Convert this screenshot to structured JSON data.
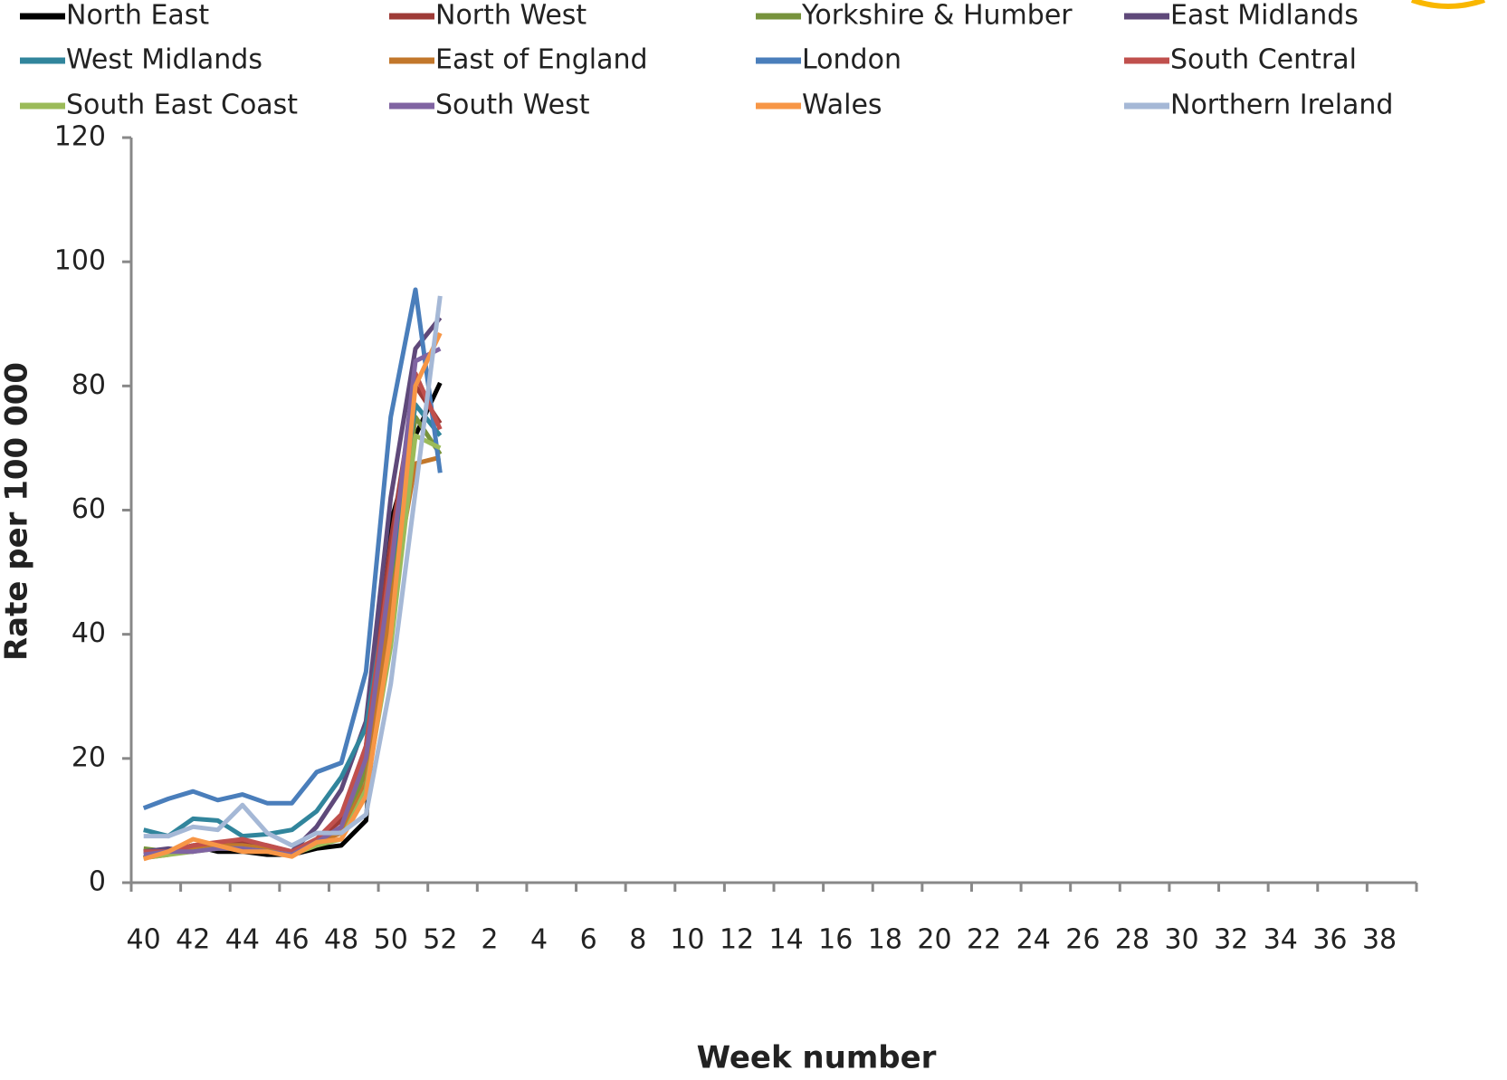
{
  "chart_data": {
    "type": "line",
    "x_label": "Week number",
    "y_label": "Rate per 100 000",
    "categories": [
      40,
      null,
      42,
      null,
      44,
      null,
      46,
      null,
      48,
      null,
      50,
      null,
      52,
      null,
      2,
      null,
      4,
      null,
      6,
      null,
      8,
      null,
      10,
      null,
      12,
      null,
      14,
      null,
      16,
      null,
      18,
      null,
      20,
      null,
      22,
      null,
      24,
      null,
      26,
      null,
      28,
      null,
      30,
      null,
      32,
      null,
      34,
      null,
      36,
      null,
      38,
      null
    ],
    "ylim": [
      0,
      120
    ],
    "yticks": [
      0,
      20,
      40,
      60,
      80,
      100,
      120
    ],
    "series": [
      {
        "name": "North East",
        "color": "#000000",
        "values": [
          4,
          5,
          6,
          5,
          5,
          4.5,
          4.5,
          5.5,
          6,
          10,
          58,
          72,
          80.5,
          null,
          null,
          null,
          null,
          null,
          null,
          null,
          null,
          null,
          null,
          null,
          null,
          null,
          null,
          null,
          null,
          null,
          null,
          null,
          null,
          null,
          null,
          null,
          null,
          null,
          null,
          null,
          null,
          null,
          null,
          null,
          null,
          null,
          null,
          null,
          null,
          null,
          null,
          null
        ]
      },
      {
        "name": "North West",
        "color": "#9e3b37",
        "values": [
          5,
          5,
          6,
          6,
          6.5,
          6,
          5,
          7,
          10,
          22,
          55,
          80,
          74,
          null,
          null,
          null,
          null,
          null,
          null,
          null,
          null,
          null,
          null,
          null,
          null,
          null,
          null,
          null,
          null,
          null,
          null,
          null,
          null,
          null,
          null,
          null,
          null,
          null,
          null,
          null,
          null,
          null,
          null,
          null,
          null,
          null,
          null,
          null,
          null,
          null,
          null,
          null
        ]
      },
      {
        "name": "Yorkshire & Humber",
        "color": "#77933c",
        "values": [
          5.5,
          5,
          5,
          6,
          6,
          5.5,
          5,
          7,
          8,
          18,
          45,
          75,
          69,
          null,
          null,
          null,
          null,
          null,
          null,
          null,
          null,
          null,
          null,
          null,
          null,
          null,
          null,
          null,
          null,
          null,
          null,
          null,
          null,
          null,
          null,
          null,
          null,
          null,
          null,
          null,
          null,
          null,
          null,
          null,
          null,
          null,
          null,
          null,
          null,
          null,
          null,
          null
        ]
      },
      {
        "name": "East Midlands",
        "color": "#5f497a",
        "values": [
          5,
          5.5,
          5,
          6,
          6,
          5.5,
          5,
          9,
          15,
          26,
          62,
          86,
          91,
          null,
          null,
          null,
          null,
          null,
          null,
          null,
          null,
          null,
          null,
          null,
          null,
          null,
          null,
          null,
          null,
          null,
          null,
          null,
          null,
          null,
          null,
          null,
          null,
          null,
          null,
          null,
          null,
          null,
          null,
          null,
          null,
          null,
          null,
          null,
          null,
          null,
          null,
          null
        ]
      },
      {
        "name": "West Midlands",
        "color": "#31859c",
        "values": [
          8.5,
          7.5,
          10.3,
          10,
          7.5,
          7.8,
          8.5,
          11.5,
          17,
          25,
          50,
          77,
          72,
          null,
          null,
          null,
          null,
          null,
          null,
          null,
          null,
          null,
          null,
          null,
          null,
          null,
          null,
          null,
          null,
          null,
          null,
          null,
          null,
          null,
          null,
          null,
          null,
          null,
          null,
          null,
          null,
          null,
          null,
          null,
          null,
          null,
          null,
          null,
          null,
          null,
          null,
          null
        ]
      },
      {
        "name": "East of England",
        "color": "#c2772b",
        "values": [
          4,
          4.5,
          5.5,
          6,
          6,
          5.5,
          5,
          6.5,
          8,
          16,
          45,
          67.5,
          68.5,
          null,
          null,
          null,
          null,
          null,
          null,
          null,
          null,
          null,
          null,
          null,
          null,
          null,
          null,
          null,
          null,
          null,
          null,
          null,
          null,
          null,
          null,
          null,
          null,
          null,
          null,
          null,
          null,
          null,
          null,
          null,
          null,
          null,
          null,
          null,
          null,
          null,
          null,
          null
        ]
      },
      {
        "name": "London",
        "color": "#4a7ebb",
        "values": [
          12,
          13.5,
          14.7,
          13.3,
          14.2,
          12.8,
          12.8,
          17.8,
          19.3,
          34,
          75,
          95.5,
          66,
          null,
          null,
          null,
          null,
          null,
          null,
          null,
          null,
          null,
          null,
          null,
          null,
          null,
          null,
          null,
          null,
          null,
          null,
          null,
          null,
          null,
          null,
          null,
          null,
          null,
          null,
          null,
          null,
          null,
          null,
          null,
          null,
          null,
          null,
          null,
          null,
          null,
          null,
          null
        ]
      },
      {
        "name": "South Central",
        "color": "#c0504d",
        "values": [
          5,
          5,
          6,
          6.5,
          7,
          6,
          5,
          7,
          11,
          22,
          52,
          82,
          73,
          null,
          null,
          null,
          null,
          null,
          null,
          null,
          null,
          null,
          null,
          null,
          null,
          null,
          null,
          null,
          null,
          null,
          null,
          null,
          null,
          null,
          null,
          null,
          null,
          null,
          null,
          null,
          null,
          null,
          null,
          null,
          null,
          null,
          null,
          null,
          null,
          null,
          null,
          null
        ]
      },
      {
        "name": "South East Coast",
        "color": "#9bbb59",
        "values": [
          4,
          4.5,
          5,
          5.5,
          5.5,
          5,
          4.5,
          6,
          7,
          15,
          38,
          72,
          70,
          null,
          null,
          null,
          null,
          null,
          null,
          null,
          null,
          null,
          null,
          null,
          null,
          null,
          null,
          null,
          null,
          null,
          null,
          null,
          null,
          null,
          null,
          null,
          null,
          null,
          null,
          null,
          null,
          null,
          null,
          null,
          null,
          null,
          null,
          null,
          null,
          null,
          null,
          null
        ]
      },
      {
        "name": "South West",
        "color": "#8064a2",
        "values": [
          4.5,
          5,
          5,
          5.5,
          5.5,
          5,
          4.5,
          6.5,
          9,
          20,
          50,
          84,
          86,
          null,
          null,
          null,
          null,
          null,
          null,
          null,
          null,
          null,
          null,
          null,
          null,
          null,
          null,
          null,
          null,
          null,
          null,
          null,
          null,
          null,
          null,
          null,
          null,
          null,
          null,
          null,
          null,
          null,
          null,
          null,
          null,
          null,
          null,
          null,
          null,
          null,
          null,
          null
        ]
      },
      {
        "name": "Wales",
        "color": "#f79646",
        "values": [
          3.8,
          5,
          7,
          6,
          5,
          5,
          4.2,
          6.5,
          7,
          14,
          40,
          80,
          88.5,
          null,
          null,
          null,
          null,
          null,
          null,
          null,
          null,
          null,
          null,
          null,
          null,
          null,
          null,
          null,
          null,
          null,
          null,
          null,
          null,
          null,
          null,
          null,
          null,
          null,
          null,
          null,
          null,
          null,
          null,
          null,
          null,
          null,
          null,
          null,
          null,
          null,
          null,
          null
        ]
      },
      {
        "name": "Northern Ireland",
        "color": "#a5b8d6",
        "values": [
          7.5,
          7.5,
          9,
          8.5,
          12.5,
          8,
          6,
          8,
          8,
          11,
          32,
          63,
          94.5,
          null,
          null,
          null,
          null,
          null,
          null,
          null,
          null,
          null,
          null,
          null,
          null,
          null,
          null,
          null,
          null,
          null,
          null,
          null,
          null,
          null,
          null,
          null,
          null,
          null,
          null,
          null,
          null,
          null,
          null,
          null,
          null,
          null,
          null,
          null,
          null,
          null,
          null,
          null
        ]
      }
    ]
  }
}
